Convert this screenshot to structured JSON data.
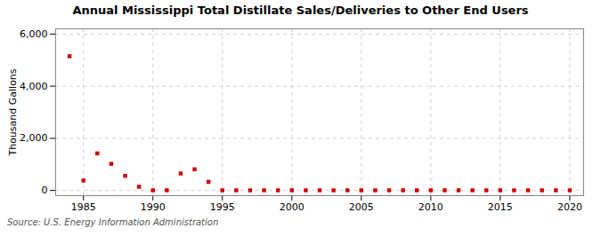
{
  "chart_data": {
    "type": "scatter",
    "title": "Annual Mississippi Total Distillate Sales/Deliveries to Other End Users",
    "ylabel": "Thousand Gallons",
    "caption": "Source: U.S. Energy Information Administration",
    "x": [
      1984,
      1985,
      1986,
      1987,
      1988,
      1989,
      1990,
      1991,
      1992,
      1993,
      1994,
      1995,
      1996,
      1997,
      1998,
      1999,
      2000,
      2001,
      2002,
      2003,
      2004,
      2005,
      2006,
      2007,
      2008,
      2009,
      2010,
      2011,
      2012,
      2013,
      2014,
      2015,
      2016,
      2017,
      2018,
      2019,
      2020
    ],
    "values": [
      5150,
      380,
      1420,
      1020,
      560,
      140,
      5,
      5,
      650,
      810,
      330,
      5,
      5,
      5,
      5,
      5,
      5,
      5,
      5,
      5,
      5,
      5,
      5,
      5,
      5,
      5,
      5,
      5,
      5,
      5,
      5,
      5,
      5,
      5,
      5,
      5,
      5
    ],
    "color": "#cc0000",
    "marker": "square",
    "xlim": [
      1983,
      2021
    ],
    "ylim": [
      -200,
      6200
    ],
    "xticks": [
      1985,
      1990,
      1995,
      2000,
      2005,
      2010,
      2015,
      2020
    ],
    "yticks": [
      0,
      {
        "value": 2000,
        "label": "2,000"
      },
      {
        "value": 4000,
        "label": "4,000"
      },
      {
        "value": 6000,
        "label": "6,000"
      }
    ],
    "grid": true
  }
}
